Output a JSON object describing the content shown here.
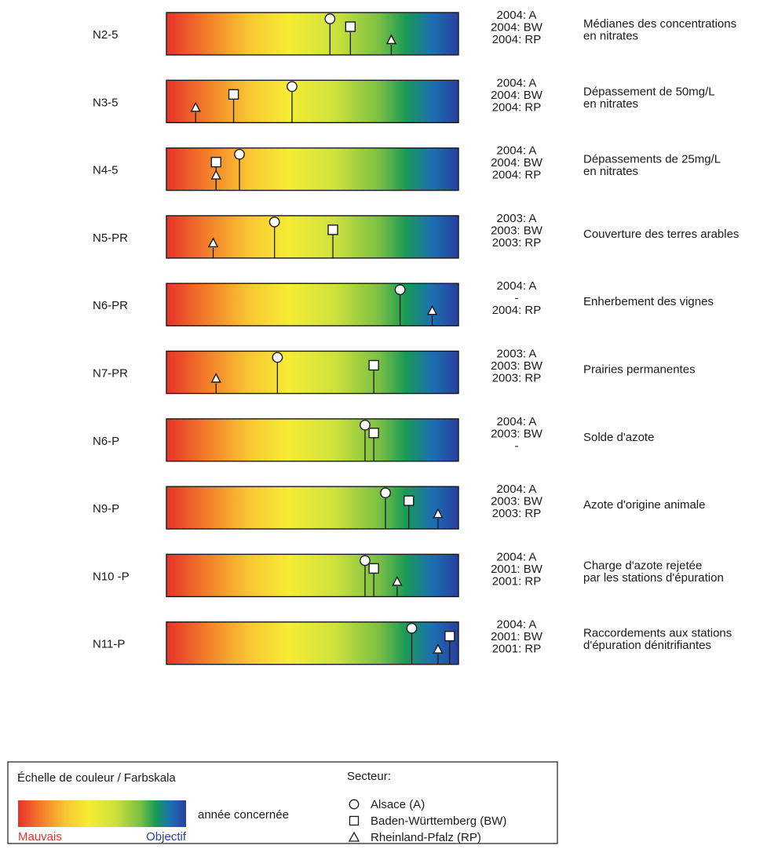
{
  "chart_data": {
    "type": "indicator-scale",
    "scale": {
      "bad_label": "Mauvais",
      "goal_label": "Objectif",
      "bad_color": "#e8322a",
      "goal_color": "#2a3f9e"
    },
    "rows": [
      {
        "code": "N2-5",
        "years": [
          "2004: A",
          "2004: BW",
          "2004: RP"
        ],
        "description": [
          "Médianes des concentrations",
          "en nitrates"
        ],
        "markers": {
          "A": 0.56,
          "BW": 0.63,
          "RP": 0.77
        }
      },
      {
        "code": "N3-5",
        "years": [
          "2004: A",
          "2004: BW",
          "2004: RP"
        ],
        "description": [
          "Dépassement de 50mg/L",
          "en nitrates"
        ],
        "markers": {
          "A": 0.43,
          "BW": 0.23,
          "RP": 0.1
        }
      },
      {
        "code": "N4-5",
        "years": [
          "2004: A",
          "2004: BW",
          "2004: RP"
        ],
        "description": [
          "Dépassements de 25mg/L",
          "en nitrates"
        ],
        "markers": {
          "A": 0.25,
          "BW": 0.17,
          "RP": 0.17
        }
      },
      {
        "code": "N5-PR",
        "years": [
          "2003: A",
          "2003: BW",
          "2003: RP"
        ],
        "description": [
          "Couverture des terres arables"
        ],
        "markers": {
          "A": 0.37,
          "BW": 0.57,
          "RP": 0.16
        }
      },
      {
        "code": "N6-PR",
        "years": [
          "2004: A",
          "-",
          "2004: RP"
        ],
        "description": [
          "Enherbement des vignes"
        ],
        "markers": {
          "A": 0.8,
          "RP": 0.91
        }
      },
      {
        "code": "N7-PR",
        "years": [
          "2003: A",
          "2003: BW",
          "2003: RP"
        ],
        "description": [
          "Prairies permanentes"
        ],
        "markers": {
          "A": 0.38,
          "BW": 0.71,
          "RP": 0.17
        }
      },
      {
        "code": "N6-P",
        "years": [
          "2004: A",
          "2003: BW",
          "-"
        ],
        "description": [
          "Solde d'azote"
        ],
        "markers": {
          "A": 0.68,
          "BW": 0.71
        }
      },
      {
        "code": "N9-P",
        "years": [
          "2004: A",
          "2003: BW",
          "2003: RP"
        ],
        "description": [
          "Azote d'origine animale"
        ],
        "markers": {
          "A": 0.75,
          "BW": 0.83,
          "RP": 0.93
        }
      },
      {
        "code": "N10 -P",
        "years": [
          "2004: A",
          "2001: BW",
          "2001: RP"
        ],
        "description": [
          "Charge d'azote rejetée",
          "par les stations d'épuration"
        ],
        "markers": {
          "A": 0.68,
          "BW": 0.71,
          "RP": 0.79
        }
      },
      {
        "code": "N11-P",
        "years": [
          "2004: A",
          "2001: BW",
          "2001: RP"
        ],
        "description": [
          "Raccordements aux stations",
          "d'épuration dénitrifiantes"
        ],
        "markers": {
          "A": 0.84,
          "BW": 0.97,
          "RP": 0.93
        }
      }
    ],
    "legend": {
      "scale_title": "Échelle de couleur / Farbskala",
      "year_note": "année concernée",
      "sector_title": "Secteur:",
      "sectors": [
        {
          "symbol": "circle",
          "label": "Alsace (A)"
        },
        {
          "symbol": "square",
          "label": "Baden-Württemberg (BW)"
        },
        {
          "symbol": "triangle",
          "label": "Rheinland-Pfalz (RP)"
        }
      ]
    }
  }
}
